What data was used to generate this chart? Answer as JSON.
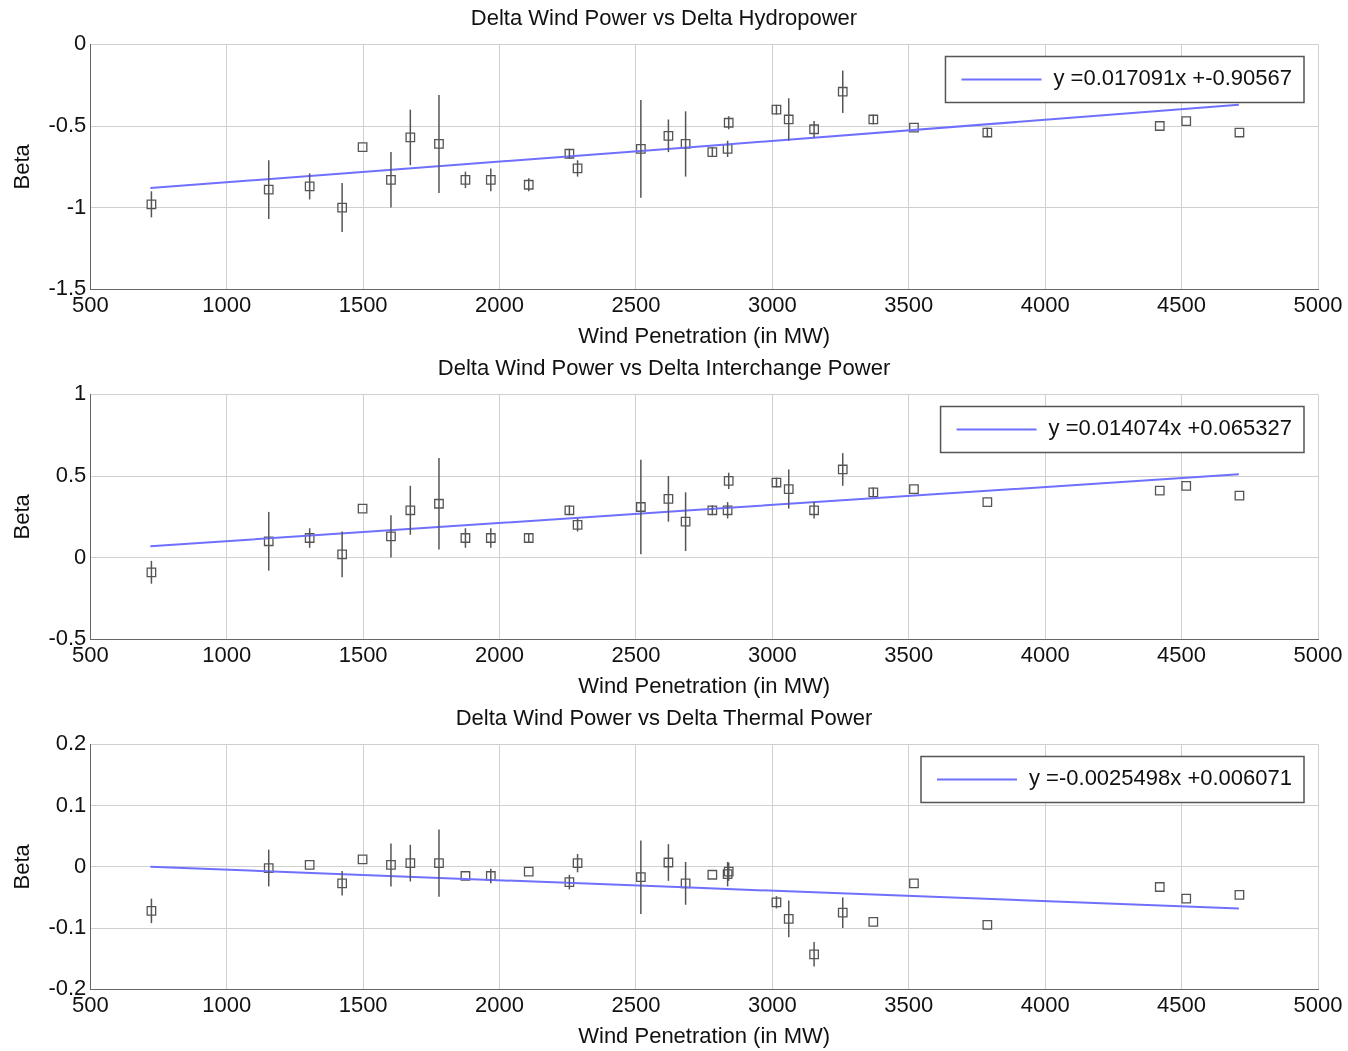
{
  "chart_data": [
    {
      "type": "scatter",
      "title": "Delta Wind Power vs Delta Hydropower",
      "xlabel": "Wind Penetration (in MW)",
      "ylabel": "Beta",
      "xlim": [
        500,
        5000
      ],
      "xticks": [
        500,
        1000,
        1500,
        2000,
        2500,
        3000,
        3500,
        4000,
        4500,
        5000
      ],
      "ylim": [
        -1.5,
        0
      ],
      "yticks": [
        -1.5,
        -1,
        -0.5,
        0
      ],
      "grid": true,
      "legend": "top right",
      "marker": "square",
      "x": [
        724,
        1154,
        1304,
        1423,
        1498,
        1602,
        1673,
        1778,
        1875,
        1968,
        2107,
        2256,
        2286,
        2518,
        2619,
        2682,
        2780,
        2836,
        2840,
        3015,
        3060,
        3153,
        3258,
        3370,
        3519,
        3788,
        4420,
        4517,
        4712
      ],
      "series": [
        {
          "color": "#555555",
          "values": [
            -0.98,
            -0.89,
            -0.87,
            -1.0,
            -0.63,
            -0.83,
            -0.57,
            -0.61,
            -0.83,
            -0.83,
            -0.86,
            -0.67,
            -0.76,
            -0.64,
            -0.56,
            -0.61,
            -0.66,
            -0.64,
            -0.48,
            -0.4,
            -0.46,
            -0.52,
            -0.29,
            -0.46,
            -0.51,
            -0.54,
            -0.5,
            -0.47,
            -0.54
          ],
          "errors": [
            0.08,
            0.18,
            0.08,
            0.15,
            null,
            0.17,
            0.17,
            0.3,
            0.05,
            0.07,
            0.04,
            0.03,
            0.05,
            0.3,
            0.1,
            0.2,
            0.03,
            0.05,
            0.04,
            0.03,
            0.13,
            0.05,
            0.13,
            0.03,
            null,
            0.03,
            null,
            null,
            null
          ]
        },
        {
          "type": "line",
          "marker": "none",
          "name": "y =0.017091x +-0.90567",
          "color": "#7070ff",
          "x": [
            720,
            2700,
            4710
          ],
          "values": [
            -0.88,
            -0.63,
            -0.37
          ]
        }
      ]
    },
    {
      "type": "scatter",
      "title": "Delta Wind Power vs Delta Interchange Power",
      "xlabel": "Wind Penetration (in MW)",
      "ylabel": "Beta",
      "xlim": [
        500,
        5000
      ],
      "xticks": [
        500,
        1000,
        1500,
        2000,
        2500,
        3000,
        3500,
        4000,
        4500,
        5000
      ],
      "ylim": [
        -0.5,
        1
      ],
      "yticks": [
        -0.5,
        0,
        0.5,
        1
      ],
      "grid": true,
      "legend": "top right",
      "marker": "square",
      "x": [
        724,
        1154,
        1304,
        1423,
        1498,
        1602,
        1673,
        1778,
        1875,
        1968,
        2107,
        2256,
        2286,
        2518,
        2619,
        2682,
        2780,
        2836,
        2840,
        3015,
        3060,
        3153,
        3258,
        3370,
        3519,
        3788,
        4420,
        4517,
        4712
      ],
      "series": [
        {
          "color": "#555555",
          "values": [
            -0.09,
            0.1,
            0.12,
            0.02,
            0.3,
            0.13,
            0.29,
            0.33,
            0.12,
            0.12,
            0.12,
            0.29,
            0.2,
            0.31,
            0.36,
            0.22,
            0.29,
            0.29,
            0.47,
            0.46,
            0.42,
            0.29,
            0.54,
            0.4,
            0.42,
            0.34,
            0.41,
            0.44,
            0.38
          ],
          "errors": [
            0.07,
            0.18,
            0.06,
            0.14,
            null,
            0.13,
            0.15,
            0.28,
            0.06,
            0.06,
            0.03,
            0.03,
            0.04,
            0.29,
            0.14,
            0.18,
            0.03,
            0.05,
            0.05,
            0.03,
            0.12,
            0.05,
            0.1,
            0.03,
            null,
            null,
            null,
            null,
            null
          ]
        },
        {
          "type": "line",
          "marker": "none",
          "name": "y =0.014074x +0.065327",
          "color": "#7070ff",
          "x": [
            720,
            2700,
            4710
          ],
          "values": [
            0.07,
            0.29,
            0.51
          ]
        }
      ]
    },
    {
      "type": "scatter",
      "title": "Delta Wind Power vs Delta Thermal Power",
      "xlabel": "Wind Penetration (in MW)",
      "ylabel": "Beta",
      "xlim": [
        500,
        5000
      ],
      "xticks": [
        500,
        1000,
        1500,
        2000,
        2500,
        3000,
        3500,
        4000,
        4500,
        5000
      ],
      "ylim": [
        -0.2,
        0.2
      ],
      "yticks": [
        -0.2,
        -0.1,
        0,
        0.1,
        0.2
      ],
      "grid": true,
      "legend": "top right",
      "marker": "square",
      "x": [
        724,
        1154,
        1304,
        1423,
        1498,
        1602,
        1673,
        1778,
        1875,
        1968,
        2107,
        2256,
        2286,
        2518,
        2619,
        2682,
        2780,
        2836,
        2840,
        3015,
        3060,
        3153,
        3258,
        3370,
        3519,
        3788,
        4420,
        4517,
        4712
      ],
      "series": [
        {
          "color": "#555555",
          "values": [
            -0.072,
            -0.002,
            0.003,
            -0.027,
            0.012,
            0.003,
            0.006,
            0.006,
            -0.015,
            -0.015,
            -0.008,
            -0.025,
            0.006,
            -0.017,
            0.007,
            -0.027,
            -0.013,
            -0.012,
            -0.008,
            -0.058,
            -0.085,
            -0.143,
            -0.075,
            -0.09,
            -0.027,
            -0.095,
            -0.033,
            -0.052,
            -0.046
          ],
          "errors": [
            0.02,
            0.03,
            null,
            0.02,
            null,
            0.035,
            0.03,
            0.055,
            null,
            0.012,
            null,
            0.012,
            0.015,
            0.06,
            0.03,
            0.035,
            null,
            0.02,
            0.015,
            0.01,
            0.03,
            0.02,
            0.025,
            null,
            null,
            null,
            null,
            null,
            null
          ]
        },
        {
          "type": "line",
          "marker": "none",
          "name": "y =-0.0025498x +0.006071",
          "color": "#7070ff",
          "x": [
            720,
            2700,
            4710
          ],
          "values": [
            0.0,
            -0.034,
            -0.068
          ]
        }
      ]
    }
  ]
}
